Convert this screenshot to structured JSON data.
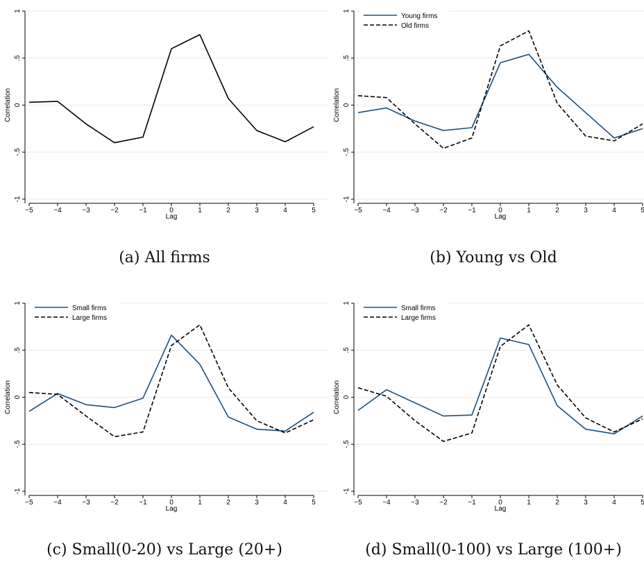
{
  "figure": {
    "panels": [
      {
        "caption": "(a) All firms",
        "ylabel": "Correlation",
        "xlabel": "Lag",
        "yticks": [
          1,
          0.5,
          0,
          -0.5,
          -1
        ],
        "ytick_labels": [
          "1",
          ".5",
          "0",
          "-.5",
          "-1"
        ],
        "xticks": [
          -5,
          -4,
          -3,
          -2,
          -1,
          0,
          1,
          2,
          3,
          4,
          5
        ],
        "xtick_labels": [
          "−5",
          "−4",
          "−3",
          "−2",
          "−1",
          "0",
          "1",
          "2",
          "3",
          "4",
          "5"
        ],
        "legend": false
      },
      {
        "caption": "(b) Young vs Old",
        "ylabel": "Correlation",
        "xlabel": "Lag",
        "yticks": [
          1,
          0.5,
          0,
          -0.5,
          -1
        ],
        "ytick_labels": [
          "1",
          ".5",
          "0",
          "-.5",
          "-1"
        ],
        "xticks": [
          -5,
          -4,
          -3,
          -2,
          -1,
          0,
          1,
          2,
          3,
          4,
          5
        ],
        "xtick_labels": [
          "−5",
          "−4",
          "−3",
          "−2",
          "−1",
          "0",
          "1",
          "2",
          "3",
          "4",
          "5"
        ],
        "legend": true
      },
      {
        "caption": "(c) Small(0-20) vs Large (20+)",
        "ylabel": "Correlation",
        "xlabel": "Lag",
        "yticks": [
          1,
          0.5,
          0,
          -0.5,
          -1
        ],
        "ytick_labels": [
          "1",
          ".5",
          "0",
          "-.5",
          "-1"
        ],
        "xticks": [
          -5,
          -4,
          -3,
          -2,
          -1,
          0,
          1,
          2,
          3,
          4,
          5
        ],
        "xtick_labels": [
          "−5",
          "−4",
          "−3",
          "−2",
          "−1",
          "0",
          "1",
          "2",
          "3",
          "4",
          "5"
        ],
        "legend": true
      },
      {
        "caption": "(d) Small(0-100) vs Large (100+)",
        "ylabel": "Correlation",
        "xlabel": "Lag",
        "yticks": [
          1,
          0.5,
          0,
          -0.5,
          -1
        ],
        "ytick_labels": [
          "1",
          ".5",
          "0",
          "-.5",
          "-1"
        ],
        "xticks": [
          -5,
          -4,
          -3,
          -2,
          -1,
          0,
          1,
          2,
          3,
          4,
          5
        ],
        "xtick_labels": [
          "−5",
          "−4",
          "−3",
          "−2",
          "−1",
          "0",
          "1",
          "2",
          "3",
          "4",
          "5"
        ],
        "legend": true
      }
    ]
  },
  "chart_data": [
    {
      "type": "line",
      "title": "",
      "xlabel": "Lag",
      "ylabel": "Correlation",
      "xlim": [
        -5,
        5
      ],
      "ylim": [
        -1,
        1
      ],
      "grid": true,
      "legend": "none",
      "x": [
        -5,
        -4,
        -3,
        -2,
        -1,
        0,
        1,
        2,
        3,
        4,
        5
      ],
      "series": [
        {
          "values": [
            0.03,
            0.04,
            -0.2,
            -0.4,
            -0.34,
            0.6,
            0.75,
            0.07,
            -0.27,
            -0.39,
            -0.23
          ],
          "color": "#000000",
          "dash": "solid"
        }
      ]
    },
    {
      "type": "line",
      "title": "",
      "xlabel": "Lag",
      "ylabel": "Correlation",
      "xlim": [
        -5,
        5
      ],
      "ylim": [
        -1,
        1
      ],
      "grid": true,
      "legend": "top-left",
      "x": [
        -5,
        -4,
        -3,
        -2,
        -1,
        0,
        1,
        2,
        3,
        4,
        5
      ],
      "series": [
        {
          "name": "Young firms",
          "values": [
            -0.08,
            -0.03,
            -0.17,
            -0.27,
            -0.24,
            0.45,
            0.54,
            0.19,
            -0.08,
            -0.35,
            -0.25
          ],
          "color": "#1f4e79",
          "dash": "solid"
        },
        {
          "name": "Old firms",
          "values": [
            0.1,
            0.08,
            -0.2,
            -0.46,
            -0.35,
            0.63,
            0.79,
            0.02,
            -0.33,
            -0.38,
            -0.2
          ],
          "color": "#000000",
          "dash": "dashed"
        }
      ]
    },
    {
      "type": "line",
      "title": "",
      "xlabel": "Lag",
      "ylabel": "Correlation",
      "xlim": [
        -5,
        5
      ],
      "ylim": [
        -1,
        1
      ],
      "grid": true,
      "legend": "top-left",
      "x": [
        -5,
        -4,
        -3,
        -2,
        -1,
        0,
        1,
        2,
        3,
        4,
        5
      ],
      "series": [
        {
          "name": "Small firms",
          "values": [
            -0.15,
            0.04,
            -0.08,
            -0.11,
            -0.01,
            0.66,
            0.35,
            -0.21,
            -0.34,
            -0.36,
            -0.16
          ],
          "color": "#1f4e79",
          "dash": "solid"
        },
        {
          "name": "Large firms",
          "values": [
            0.05,
            0.03,
            -0.2,
            -0.42,
            -0.37,
            0.55,
            0.77,
            0.1,
            -0.25,
            -0.38,
            -0.24
          ],
          "color": "#000000",
          "dash": "dashed"
        }
      ]
    },
    {
      "type": "line",
      "title": "",
      "xlabel": "Lag",
      "ylabel": "Correlation",
      "xlim": [
        -5,
        5
      ],
      "ylim": [
        -1,
        1
      ],
      "grid": true,
      "legend": "top-left",
      "x": [
        -5,
        -4,
        -3,
        -2,
        -1,
        0,
        1,
        2,
        3,
        4,
        5
      ],
      "series": [
        {
          "name": "Small firms",
          "values": [
            -0.14,
            0.08,
            -0.06,
            -0.2,
            -0.19,
            0.63,
            0.56,
            -0.09,
            -0.34,
            -0.39,
            -0.2
          ],
          "color": "#1f4e79",
          "dash": "solid"
        },
        {
          "name": "Large firms",
          "values": [
            0.1,
            0.01,
            -0.25,
            -0.47,
            -0.38,
            0.54,
            0.77,
            0.13,
            -0.22,
            -0.37,
            -0.23
          ],
          "color": "#000000",
          "dash": "dashed"
        }
      ]
    }
  ]
}
